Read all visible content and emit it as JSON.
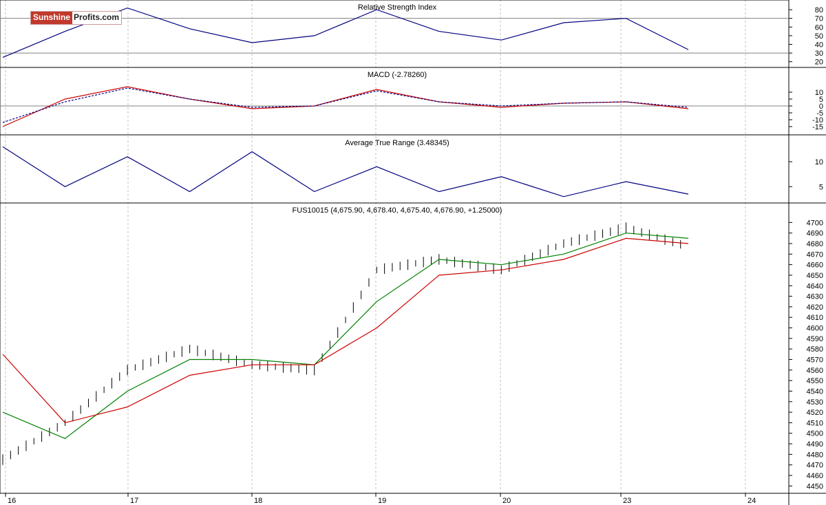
{
  "watermark": {
    "part1": "Sunshine",
    "part2": "Profits.com"
  },
  "x_axis": {
    "ticks": [
      "16",
      "17",
      "18",
      "19",
      "20",
      "23",
      "24"
    ]
  },
  "colors": {
    "price_bars": "#000000",
    "ma_short": "#008000",
    "ma_long": "#cc0000",
    "rsi_line": "#000080",
    "macd_line": "#cc0000",
    "signal_line": "#000080",
    "atr_line": "#000080",
    "ref_line": "#808080",
    "grid": "#c0c0c0"
  },
  "chart_data": [
    {
      "type": "line",
      "title": "Relative Strength Index",
      "ylim": [
        15,
        88
      ],
      "yticks": [
        20,
        30,
        40,
        50,
        60,
        70,
        80
      ],
      "reference_lines": [
        30,
        70
      ],
      "x": [
        "16",
        "16.5",
        "17",
        "17.5",
        "18",
        "18.5",
        "19",
        "19.5",
        "20",
        "20.5",
        "23",
        "23.5"
      ],
      "series": [
        {
          "values": [
            25,
            55,
            82,
            58,
            42,
            50,
            80,
            55,
            45,
            65,
            70,
            34
          ]
        }
      ]
    },
    {
      "type": "line",
      "title": "MACD (-2.78260)",
      "ylim": [
        -20,
        20
      ],
      "yticks": [
        10,
        5,
        0,
        -5,
        -10,
        -15
      ],
      "reference_lines": [
        0
      ],
      "x": [
        "16",
        "16.5",
        "17",
        "17.5",
        "18",
        "18.5",
        "19",
        "19.5",
        "20",
        "20.5",
        "23",
        "23.5"
      ],
      "series": [
        {
          "values": [
            -15,
            5,
            14,
            5,
            -2,
            0,
            12,
            3,
            -1,
            2,
            3,
            -2
          ]
        },
        {
          "values": [
            -12,
            3,
            13,
            5,
            -1,
            0,
            11,
            3,
            0,
            2,
            3,
            -1
          ]
        }
      ]
    },
    {
      "type": "line",
      "title": "Average True Range (3.48345)",
      "ylim": [
        2,
        14
      ],
      "yticks": [
        10,
        5
      ],
      "x": [
        "16",
        "16.5",
        "17",
        "17.5",
        "18",
        "18.5",
        "19",
        "19.5",
        "20",
        "20.5",
        "23",
        "23.5"
      ],
      "series": [
        {
          "values": [
            13,
            5,
            11,
            4,
            12,
            4,
            9,
            4,
            7,
            3,
            6,
            3.5
          ]
        }
      ]
    },
    {
      "type": "line",
      "title": "FUS10015 (4,675.90, 4,678.40, 4,675.40, 4,676.90, +1.25000)",
      "ylim": [
        4445,
        4712
      ],
      "yticks": [
        4700,
        4690,
        4680,
        4670,
        4660,
        4650,
        4640,
        4630,
        4620,
        4610,
        4600,
        4590,
        4580,
        4570,
        4560,
        4550,
        4540,
        4530,
        4520,
        4510,
        4500,
        4490,
        4480,
        4470,
        4460,
        4450
      ],
      "x": [
        "16",
        "16.5",
        "17",
        "17.5",
        "18",
        "18.5",
        "19",
        "19.5",
        "20",
        "20.5",
        "23",
        "23.5"
      ],
      "series": [
        {
          "values": [
            4475,
            4510,
            4560,
            4580,
            4565,
            4560,
            4655,
            4665,
            4655,
            4680,
            4695,
            4677
          ]
        },
        {
          "values": [
            4520,
            4495,
            4540,
            4570,
            4570,
            4565,
            4625,
            4665,
            4660,
            4670,
            4690,
            4685
          ]
        },
        {
          "values": [
            4575,
            4510,
            4525,
            4555,
            4565,
            4565,
            4600,
            4650,
            4655,
            4665,
            4685,
            4680
          ]
        }
      ]
    }
  ]
}
